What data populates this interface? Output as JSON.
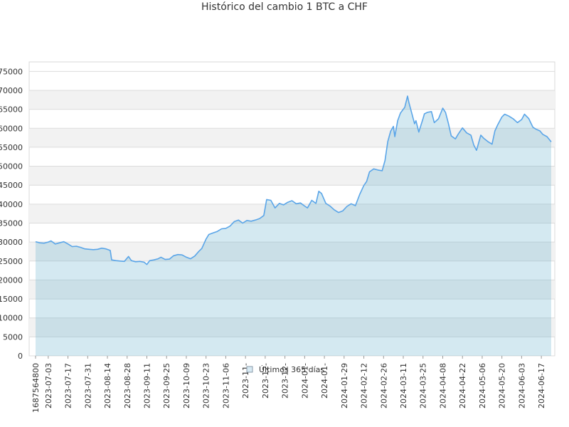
{
  "chart_data": {
    "type": "area",
    "title": "Histórico del cambio 1 BTC a CHF",
    "legend": {
      "label": "Últimos 365 días",
      "position": "bottom"
    },
    "ylim": [
      0,
      77500
    ],
    "yticks": [
      0,
      5000,
      10000,
      15000,
      20000,
      25000,
      30000,
      35000,
      40000,
      45000,
      50000,
      55000,
      60000,
      65000,
      70000,
      75000
    ],
    "ytick_labels": [
      "0",
      "5000",
      "10000",
      "15000",
      "20000",
      "25000",
      "30000",
      "35000",
      "40000",
      "45000",
      "50000",
      "55000",
      "60000",
      "65000",
      "70000",
      "75000"
    ],
    "xlim": [
      "2023-06-24",
      "2024-06-24"
    ],
    "xticks": [
      {
        "date": "2023-06-24",
        "label": "1687564800"
      },
      {
        "date": "2023-07-03",
        "label": "2023-07-03"
      },
      {
        "date": "2023-07-17",
        "label": "2023-07-17"
      },
      {
        "date": "2023-07-31",
        "label": "2023-07-31"
      },
      {
        "date": "2023-08-14",
        "label": "2023-08-14"
      },
      {
        "date": "2023-08-28",
        "label": "2023-08-28"
      },
      {
        "date": "2023-09-11",
        "label": "2023-09-11"
      },
      {
        "date": "2023-09-25",
        "label": "2023-09-25"
      },
      {
        "date": "2023-10-09",
        "label": "2023-10-09"
      },
      {
        "date": "2023-10-23",
        "label": "2023-10-23"
      },
      {
        "date": "2023-11-06",
        "label": "2023-11-06"
      },
      {
        "date": "2023-11-20",
        "label": "2023-11-"
      },
      {
        "date": "2023-12-04",
        "label": "2023-12-"
      },
      {
        "date": "2023-12-18",
        "label": "2023-12-"
      },
      {
        "date": "2024-01-01",
        "label": "2024-01-"
      },
      {
        "date": "2024-01-15",
        "label": "2024-01-"
      },
      {
        "date": "2024-01-29",
        "label": "2024-01-29"
      },
      {
        "date": "2024-02-12",
        "label": "2024-02-12"
      },
      {
        "date": "2024-02-26",
        "label": "2024-02-26"
      },
      {
        "date": "2024-03-11",
        "label": "2024-03-11"
      },
      {
        "date": "2024-03-25",
        "label": "2024-03-25"
      },
      {
        "date": "2024-04-08",
        "label": "2024-04-08"
      },
      {
        "date": "2024-04-22",
        "label": "2024-04-22"
      },
      {
        "date": "2024-05-06",
        "label": "2024-05-06"
      },
      {
        "date": "2024-05-20",
        "label": "2024-05-20"
      },
      {
        "date": "2024-06-03",
        "label": "2024-06-03"
      },
      {
        "date": "2024-06-17",
        "label": "2024-06-17"
      }
    ],
    "series": [
      {
        "name": "Últimos 365 días",
        "color": "#5aa5e8",
        "fill": "rgba(100,175,205,0.28)",
        "points": [
          [
            "2023-06-24",
            30100
          ],
          [
            "2023-06-27",
            29800
          ],
          [
            "2023-06-30",
            29700
          ],
          [
            "2023-07-03",
            30000
          ],
          [
            "2023-07-05",
            30300
          ],
          [
            "2023-07-08",
            29500
          ],
          [
            "2023-07-11",
            29800
          ],
          [
            "2023-07-14",
            30100
          ],
          [
            "2023-07-17",
            29500
          ],
          [
            "2023-07-20",
            28800
          ],
          [
            "2023-07-23",
            28900
          ],
          [
            "2023-07-26",
            28600
          ],
          [
            "2023-07-29",
            28200
          ],
          [
            "2023-08-01",
            28100
          ],
          [
            "2023-08-04",
            28000
          ],
          [
            "2023-08-07",
            28100
          ],
          [
            "2023-08-10",
            28400
          ],
          [
            "2023-08-13",
            28200
          ],
          [
            "2023-08-16",
            27800
          ],
          [
            "2023-08-17",
            25300
          ],
          [
            "2023-08-20",
            25100
          ],
          [
            "2023-08-23",
            25000
          ],
          [
            "2023-08-26",
            24900
          ],
          [
            "2023-08-29",
            26200
          ],
          [
            "2023-08-31",
            25100
          ],
          [
            "2023-09-03",
            24800
          ],
          [
            "2023-09-06",
            24900
          ],
          [
            "2023-09-09",
            24700
          ],
          [
            "2023-09-11",
            24100
          ],
          [
            "2023-09-13",
            25100
          ],
          [
            "2023-09-16",
            25300
          ],
          [
            "2023-09-19",
            25600
          ],
          [
            "2023-09-21",
            26000
          ],
          [
            "2023-09-24",
            25400
          ],
          [
            "2023-09-27",
            25500
          ],
          [
            "2023-09-30",
            26400
          ],
          [
            "2023-10-03",
            26700
          ],
          [
            "2023-10-06",
            26600
          ],
          [
            "2023-10-09",
            26000
          ],
          [
            "2023-10-12",
            25600
          ],
          [
            "2023-10-15",
            26300
          ],
          [
            "2023-10-18",
            27600
          ],
          [
            "2023-10-20",
            28300
          ],
          [
            "2023-10-23",
            30800
          ],
          [
            "2023-10-25",
            32000
          ],
          [
            "2023-10-28",
            32400
          ],
          [
            "2023-10-31",
            32800
          ],
          [
            "2023-11-03",
            33500
          ],
          [
            "2023-11-06",
            33600
          ],
          [
            "2023-11-09",
            34200
          ],
          [
            "2023-11-12",
            35400
          ],
          [
            "2023-11-15",
            35800
          ],
          [
            "2023-11-18",
            35000
          ],
          [
            "2023-11-21",
            35700
          ],
          [
            "2023-11-24",
            35500
          ],
          [
            "2023-11-27",
            35800
          ],
          [
            "2023-11-30",
            36200
          ],
          [
            "2023-12-03",
            37000
          ],
          [
            "2023-12-05",
            41200
          ],
          [
            "2023-12-08",
            41000
          ],
          [
            "2023-12-11",
            39000
          ],
          [
            "2023-12-14",
            40200
          ],
          [
            "2023-12-17",
            39800
          ],
          [
            "2023-12-20",
            40500
          ],
          [
            "2023-12-23",
            40900
          ],
          [
            "2023-12-26",
            40100
          ],
          [
            "2023-12-29",
            40300
          ],
          [
            "2024-01-01",
            39500
          ],
          [
            "2024-01-03",
            39000
          ],
          [
            "2024-01-06",
            41000
          ],
          [
            "2024-01-09",
            40200
          ],
          [
            "2024-01-11",
            43400
          ],
          [
            "2024-01-13",
            42800
          ],
          [
            "2024-01-16",
            40200
          ],
          [
            "2024-01-19",
            39500
          ],
          [
            "2024-01-22",
            38500
          ],
          [
            "2024-01-25",
            37800
          ],
          [
            "2024-01-28",
            38200
          ],
          [
            "2024-01-31",
            39400
          ],
          [
            "2024-02-03",
            40100
          ],
          [
            "2024-02-06",
            39600
          ],
          [
            "2024-02-09",
            42500
          ],
          [
            "2024-02-12",
            44900
          ],
          [
            "2024-02-14",
            46000
          ],
          [
            "2024-02-16",
            48500
          ],
          [
            "2024-02-19",
            49300
          ],
          [
            "2024-02-22",
            49000
          ],
          [
            "2024-02-25",
            48800
          ],
          [
            "2024-02-27",
            51500
          ],
          [
            "2024-02-29",
            56500
          ],
          [
            "2024-03-02",
            59200
          ],
          [
            "2024-03-04",
            60500
          ],
          [
            "2024-03-05",
            57800
          ],
          [
            "2024-03-07",
            62000
          ],
          [
            "2024-03-09",
            64000
          ],
          [
            "2024-03-12",
            65500
          ],
          [
            "2024-03-14",
            68500
          ],
          [
            "2024-03-15",
            66800
          ],
          [
            "2024-03-17",
            64000
          ],
          [
            "2024-03-19",
            61200
          ],
          [
            "2024-03-20",
            62000
          ],
          [
            "2024-03-22",
            59000
          ],
          [
            "2024-03-25",
            62500
          ],
          [
            "2024-03-26",
            63800
          ],
          [
            "2024-03-28",
            64200
          ],
          [
            "2024-03-31",
            64400
          ],
          [
            "2024-04-02",
            61500
          ],
          [
            "2024-04-05",
            62500
          ],
          [
            "2024-04-08",
            65300
          ],
          [
            "2024-04-10",
            64200
          ],
          [
            "2024-04-12",
            61300
          ],
          [
            "2024-04-14",
            58000
          ],
          [
            "2024-04-17",
            57200
          ],
          [
            "2024-04-19",
            58500
          ],
          [
            "2024-04-22",
            60100
          ],
          [
            "2024-04-25",
            58800
          ],
          [
            "2024-04-28",
            58200
          ],
          [
            "2024-04-30",
            55600
          ],
          [
            "2024-05-02",
            54200
          ],
          [
            "2024-05-05",
            58200
          ],
          [
            "2024-05-07",
            57400
          ],
          [
            "2024-05-10",
            56500
          ],
          [
            "2024-05-13",
            55800
          ],
          [
            "2024-05-15",
            59300
          ],
          [
            "2024-05-17",
            60900
          ],
          [
            "2024-05-20",
            63000
          ],
          [
            "2024-05-22",
            63700
          ],
          [
            "2024-05-25",
            63200
          ],
          [
            "2024-05-28",
            62500
          ],
          [
            "2024-05-31",
            61500
          ],
          [
            "2024-06-03",
            62300
          ],
          [
            "2024-06-05",
            63700
          ],
          [
            "2024-06-08",
            62600
          ],
          [
            "2024-06-11",
            60300
          ],
          [
            "2024-06-13",
            59800
          ],
          [
            "2024-06-16",
            59300
          ],
          [
            "2024-06-18",
            58400
          ],
          [
            "2024-06-21",
            57800
          ],
          [
            "2024-06-24",
            56400
          ]
        ]
      }
    ]
  }
}
